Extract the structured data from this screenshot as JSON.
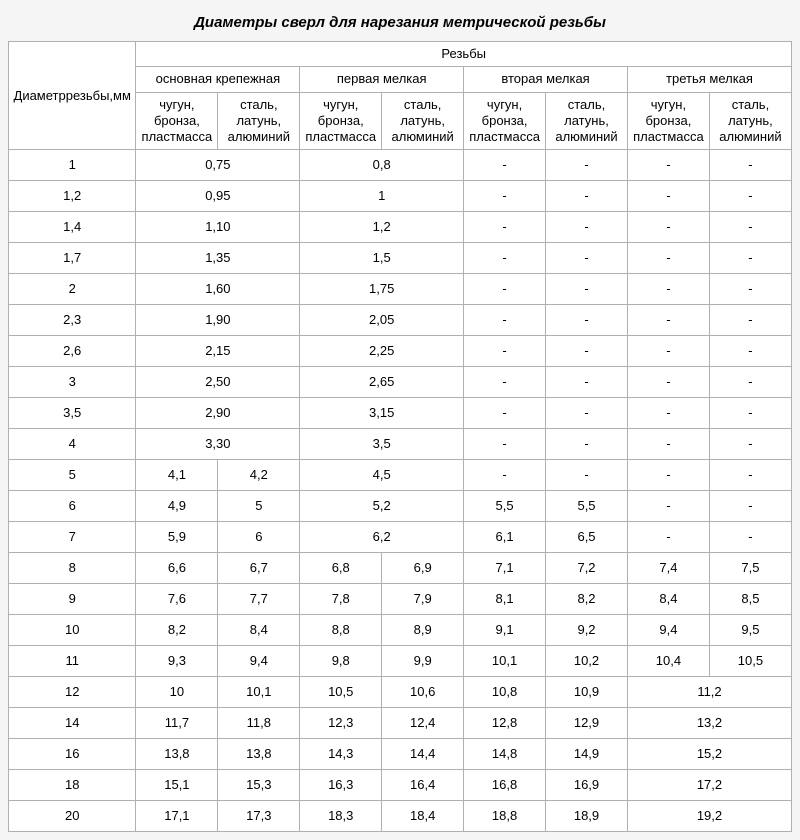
{
  "title": "Диаметры сверл для нарезания метрической резьбы",
  "head": {
    "thread_dia": "Диаметррезьбы,мм",
    "threads": "Резьбы",
    "groups": [
      "основная крепежная",
      "первая мелкая",
      "вторая мелкая",
      "третья мелкая"
    ],
    "mat1": "чугун, бронза, пластмасса",
    "mat2": "сталь, латунь, алюминий"
  },
  "rows": [
    {
      "d": "1",
      "c": [
        {
          "s": 2,
          "v": "0,75"
        },
        {
          "s": 2,
          "v": "0,8"
        },
        {
          "s": 1,
          "v": "-"
        },
        {
          "s": 1,
          "v": "-"
        },
        {
          "s": 1,
          "v": "-"
        },
        {
          "s": 1,
          "v": "-"
        }
      ]
    },
    {
      "d": "1,2",
      "c": [
        {
          "s": 2,
          "v": "0,95"
        },
        {
          "s": 2,
          "v": "1"
        },
        {
          "s": 1,
          "v": "-"
        },
        {
          "s": 1,
          "v": "-"
        },
        {
          "s": 1,
          "v": "-"
        },
        {
          "s": 1,
          "v": "-"
        }
      ]
    },
    {
      "d": "1,4",
      "c": [
        {
          "s": 2,
          "v": "1,10"
        },
        {
          "s": 2,
          "v": "1,2"
        },
        {
          "s": 1,
          "v": "-"
        },
        {
          "s": 1,
          "v": "-"
        },
        {
          "s": 1,
          "v": "-"
        },
        {
          "s": 1,
          "v": "-"
        }
      ]
    },
    {
      "d": "1,7",
      "c": [
        {
          "s": 2,
          "v": "1,35"
        },
        {
          "s": 2,
          "v": "1,5"
        },
        {
          "s": 1,
          "v": "-"
        },
        {
          "s": 1,
          "v": "-"
        },
        {
          "s": 1,
          "v": "-"
        },
        {
          "s": 1,
          "v": "-"
        }
      ]
    },
    {
      "d": "2",
      "c": [
        {
          "s": 2,
          "v": "1,60"
        },
        {
          "s": 2,
          "v": "1,75"
        },
        {
          "s": 1,
          "v": "-"
        },
        {
          "s": 1,
          "v": "-"
        },
        {
          "s": 1,
          "v": "-"
        },
        {
          "s": 1,
          "v": "-"
        }
      ]
    },
    {
      "d": "2,3",
      "c": [
        {
          "s": 2,
          "v": "1,90"
        },
        {
          "s": 2,
          "v": "2,05"
        },
        {
          "s": 1,
          "v": "-"
        },
        {
          "s": 1,
          "v": "-"
        },
        {
          "s": 1,
          "v": "-"
        },
        {
          "s": 1,
          "v": "-"
        }
      ]
    },
    {
      "d": "2,6",
      "c": [
        {
          "s": 2,
          "v": "2,15"
        },
        {
          "s": 2,
          "v": "2,25"
        },
        {
          "s": 1,
          "v": "-"
        },
        {
          "s": 1,
          "v": "-"
        },
        {
          "s": 1,
          "v": "-"
        },
        {
          "s": 1,
          "v": "-"
        }
      ]
    },
    {
      "d": "3",
      "c": [
        {
          "s": 2,
          "v": "2,50"
        },
        {
          "s": 2,
          "v": "2,65"
        },
        {
          "s": 1,
          "v": "-"
        },
        {
          "s": 1,
          "v": "-"
        },
        {
          "s": 1,
          "v": "-"
        },
        {
          "s": 1,
          "v": "-"
        }
      ]
    },
    {
      "d": "3,5",
      "c": [
        {
          "s": 2,
          "v": "2,90"
        },
        {
          "s": 2,
          "v": "3,15"
        },
        {
          "s": 1,
          "v": "-"
        },
        {
          "s": 1,
          "v": "-"
        },
        {
          "s": 1,
          "v": "-"
        },
        {
          "s": 1,
          "v": "-"
        }
      ]
    },
    {
      "d": "4",
      "c": [
        {
          "s": 2,
          "v": "3,30"
        },
        {
          "s": 2,
          "v": "3,5"
        },
        {
          "s": 1,
          "v": "-"
        },
        {
          "s": 1,
          "v": "-"
        },
        {
          "s": 1,
          "v": "-"
        },
        {
          "s": 1,
          "v": "-"
        }
      ]
    },
    {
      "d": "5",
      "c": [
        {
          "s": 1,
          "v": "4,1"
        },
        {
          "s": 1,
          "v": "4,2"
        },
        {
          "s": 2,
          "v": "4,5"
        },
        {
          "s": 1,
          "v": "-"
        },
        {
          "s": 1,
          "v": "-"
        },
        {
          "s": 1,
          "v": "-"
        },
        {
          "s": 1,
          "v": "-"
        }
      ]
    },
    {
      "d": "6",
      "c": [
        {
          "s": 1,
          "v": "4,9"
        },
        {
          "s": 1,
          "v": "5"
        },
        {
          "s": 2,
          "v": "5,2"
        },
        {
          "s": 1,
          "v": "5,5"
        },
        {
          "s": 1,
          "v": "5,5"
        },
        {
          "s": 1,
          "v": "-"
        },
        {
          "s": 1,
          "v": "-"
        }
      ]
    },
    {
      "d": "7",
      "c": [
        {
          "s": 1,
          "v": "5,9"
        },
        {
          "s": 1,
          "v": "6"
        },
        {
          "s": 2,
          "v": "6,2"
        },
        {
          "s": 1,
          "v": "6,1"
        },
        {
          "s": 1,
          "v": "6,5"
        },
        {
          "s": 1,
          "v": "-"
        },
        {
          "s": 1,
          "v": "-"
        }
      ]
    },
    {
      "d": "8",
      "c": [
        {
          "s": 1,
          "v": "6,6"
        },
        {
          "s": 1,
          "v": "6,7"
        },
        {
          "s": 1,
          "v": "6,8"
        },
        {
          "s": 1,
          "v": "6,9"
        },
        {
          "s": 1,
          "v": "7,1"
        },
        {
          "s": 1,
          "v": "7,2"
        },
        {
          "s": 1,
          "v": "7,4"
        },
        {
          "s": 1,
          "v": "7,5"
        }
      ]
    },
    {
      "d": "9",
      "c": [
        {
          "s": 1,
          "v": "7,6"
        },
        {
          "s": 1,
          "v": "7,7"
        },
        {
          "s": 1,
          "v": "7,8"
        },
        {
          "s": 1,
          "v": "7,9"
        },
        {
          "s": 1,
          "v": "8,1"
        },
        {
          "s": 1,
          "v": "8,2"
        },
        {
          "s": 1,
          "v": "8,4"
        },
        {
          "s": 1,
          "v": "8,5"
        }
      ]
    },
    {
      "d": "10",
      "c": [
        {
          "s": 1,
          "v": "8,2"
        },
        {
          "s": 1,
          "v": "8,4"
        },
        {
          "s": 1,
          "v": "8,8"
        },
        {
          "s": 1,
          "v": "8,9"
        },
        {
          "s": 1,
          "v": "9,1"
        },
        {
          "s": 1,
          "v": "9,2"
        },
        {
          "s": 1,
          "v": "9,4"
        },
        {
          "s": 1,
          "v": "9,5"
        }
      ]
    },
    {
      "d": "11",
      "c": [
        {
          "s": 1,
          "v": "9,3"
        },
        {
          "s": 1,
          "v": "9,4"
        },
        {
          "s": 1,
          "v": "9,8"
        },
        {
          "s": 1,
          "v": "9,9"
        },
        {
          "s": 1,
          "v": "10,1"
        },
        {
          "s": 1,
          "v": "10,2"
        },
        {
          "s": 1,
          "v": "10,4"
        },
        {
          "s": 1,
          "v": "10,5"
        }
      ]
    },
    {
      "d": "12",
      "c": [
        {
          "s": 1,
          "v": "10"
        },
        {
          "s": 1,
          "v": "10,1"
        },
        {
          "s": 1,
          "v": "10,5"
        },
        {
          "s": 1,
          "v": "10,6"
        },
        {
          "s": 1,
          "v": "10,8"
        },
        {
          "s": 1,
          "v": "10,9"
        },
        {
          "s": 2,
          "v": "11,2"
        }
      ]
    },
    {
      "d": "14",
      "c": [
        {
          "s": 1,
          "v": "11,7"
        },
        {
          "s": 1,
          "v": "11,8"
        },
        {
          "s": 1,
          "v": "12,3"
        },
        {
          "s": 1,
          "v": "12,4"
        },
        {
          "s": 1,
          "v": "12,8"
        },
        {
          "s": 1,
          "v": "12,9"
        },
        {
          "s": 2,
          "v": "13,2"
        }
      ]
    },
    {
      "d": "16",
      "c": [
        {
          "s": 1,
          "v": "13,8"
        },
        {
          "s": 1,
          "v": "13,8"
        },
        {
          "s": 1,
          "v": "14,3"
        },
        {
          "s": 1,
          "v": "14,4"
        },
        {
          "s": 1,
          "v": "14,8"
        },
        {
          "s": 1,
          "v": "14,9"
        },
        {
          "s": 2,
          "v": "15,2"
        }
      ]
    },
    {
      "d": "18",
      "c": [
        {
          "s": 1,
          "v": "15,1"
        },
        {
          "s": 1,
          "v": "15,3"
        },
        {
          "s": 1,
          "v": "16,3"
        },
        {
          "s": 1,
          "v": "16,4"
        },
        {
          "s": 1,
          "v": "16,8"
        },
        {
          "s": 1,
          "v": "16,9"
        },
        {
          "s": 2,
          "v": "17,2"
        }
      ]
    },
    {
      "d": "20",
      "c": [
        {
          "s": 1,
          "v": "17,1"
        },
        {
          "s": 1,
          "v": "17,3"
        },
        {
          "s": 1,
          "v": "18,3"
        },
        {
          "s": 1,
          "v": "18,4"
        },
        {
          "s": 1,
          "v": "18,8"
        },
        {
          "s": 1,
          "v": "18,9"
        },
        {
          "s": 2,
          "v": "19,2"
        }
      ]
    }
  ]
}
